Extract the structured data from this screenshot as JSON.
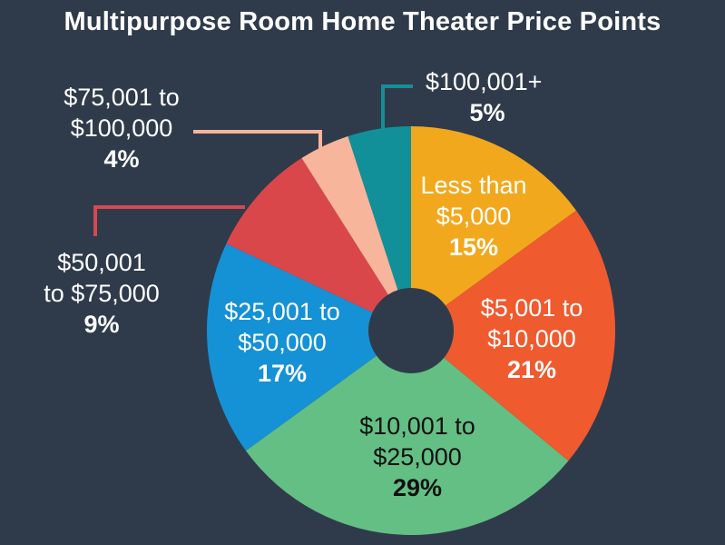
{
  "chart_data": {
    "type": "pie",
    "title": "Multipurpose Room Home Theater Price Points",
    "slices": [
      {
        "lines": [
          "Less than",
          "$5,000"
        ],
        "value": 15,
        "pct": "15%",
        "color": "#f2a81d",
        "text_color": "#ffffff"
      },
      {
        "lines": [
          "$5,001 to",
          "$10,000"
        ],
        "value": 21,
        "pct": "21%",
        "color": "#ef5a2f",
        "text_color": "#ffffff"
      },
      {
        "lines": [
          "$10,001 to",
          "$25,000"
        ],
        "value": 29,
        "pct": "29%",
        "color": "#64bf84",
        "text_color": "#111111"
      },
      {
        "lines": [
          "$25,001 to",
          "$50,000"
        ],
        "value": 17,
        "pct": "17%",
        "color": "#1591d6",
        "text_color": "#ffffff"
      },
      {
        "lines": [
          "$50,001",
          "to $75,000"
        ],
        "value": 9,
        "pct": "9%",
        "color": "#d9474b",
        "text_color": "#ffffff"
      },
      {
        "lines": [
          "$75,001 to",
          "$100,000"
        ],
        "value": 4,
        "pct": "4%",
        "color": "#f7b59b",
        "text_color": "#ffffff"
      },
      {
        "lines": [
          "$100,001+"
        ],
        "value": 5,
        "pct": "5%",
        "color": "#11909a",
        "text_color": "#ffffff"
      }
    ]
  }
}
